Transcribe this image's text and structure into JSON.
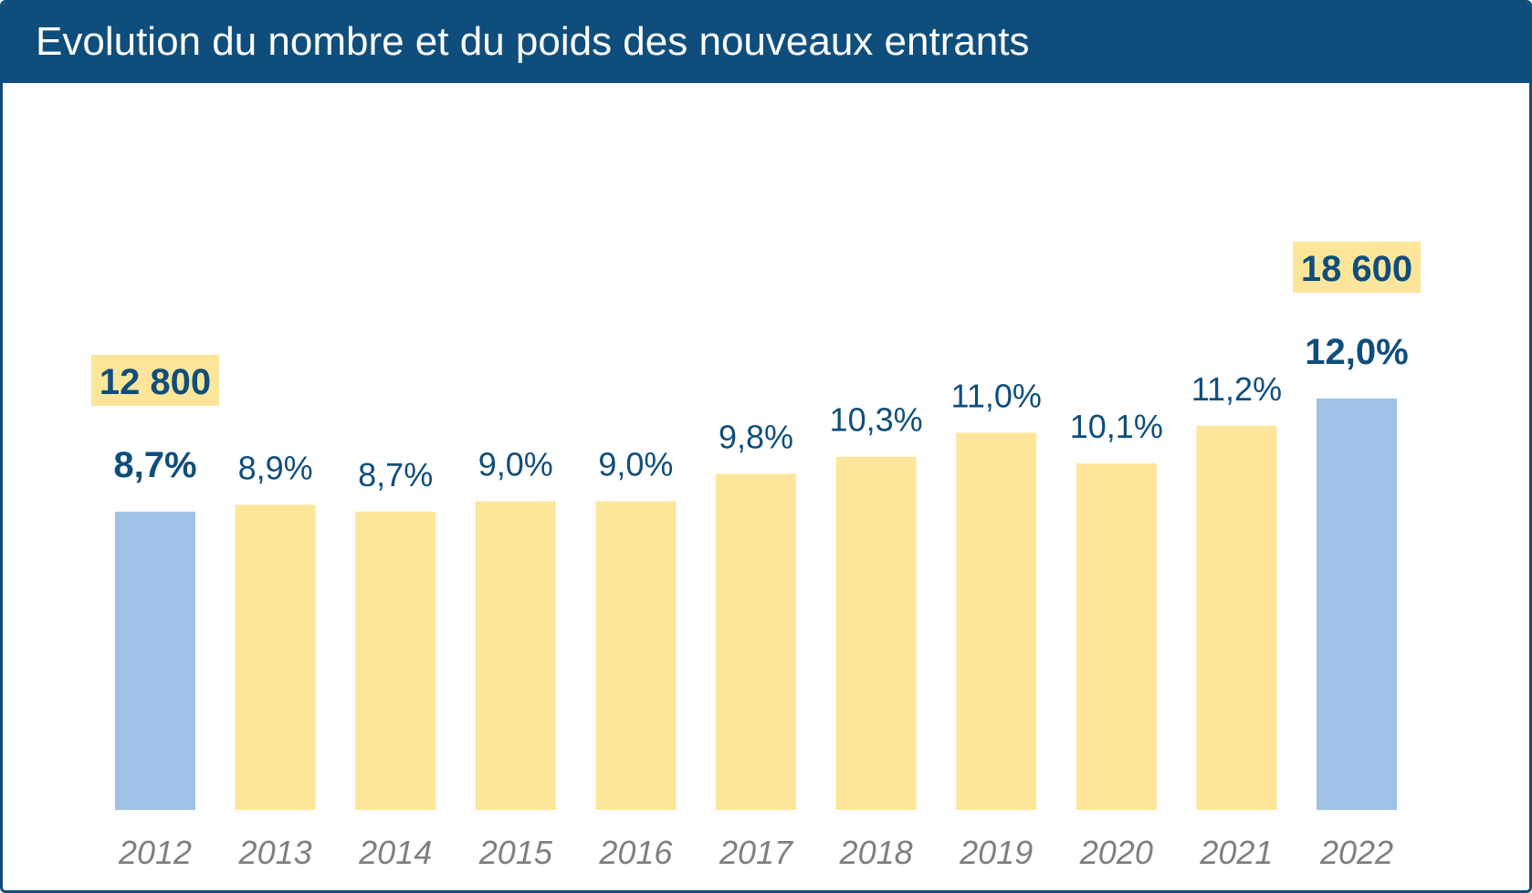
{
  "title": "Evolution du nombre et du poids des nouveaux entrants",
  "colors": {
    "header_bg": "#0f4e7c",
    "label_text": "#0f4e7c",
    "bar_default": "#fde69a",
    "bar_highlight": "#9fc3e6",
    "callout_bg": "#fde69a",
    "year_text": "#7f7f7f"
  },
  "chart_data": {
    "type": "bar",
    "categories": [
      "2012",
      "2013",
      "2014",
      "2015",
      "2016",
      "2017",
      "2018",
      "2019",
      "2020",
      "2021",
      "2022"
    ],
    "values": [
      8.7,
      8.9,
      8.7,
      9.0,
      9.0,
      9.8,
      10.3,
      11.0,
      10.1,
      11.2,
      12.0
    ],
    "value_labels": [
      "8,7%",
      "8,9%",
      "8,7%",
      "9,0%",
      "9,0%",
      "9,8%",
      "10,3%",
      "11,0%",
      "10,1%",
      "11,2%",
      "12,0%"
    ],
    "highlighted": [
      "2012",
      "2022"
    ],
    "callouts": [
      {
        "category": "2012",
        "label": "12 800"
      },
      {
        "category": "2022",
        "label": "18 600"
      }
    ],
    "title": "Evolution du nombre et du poids des nouveaux entrants",
    "xlabel": "",
    "ylabel": "",
    "ylim": [
      0,
      12.5
    ],
    "grid": false,
    "legend": "none"
  }
}
